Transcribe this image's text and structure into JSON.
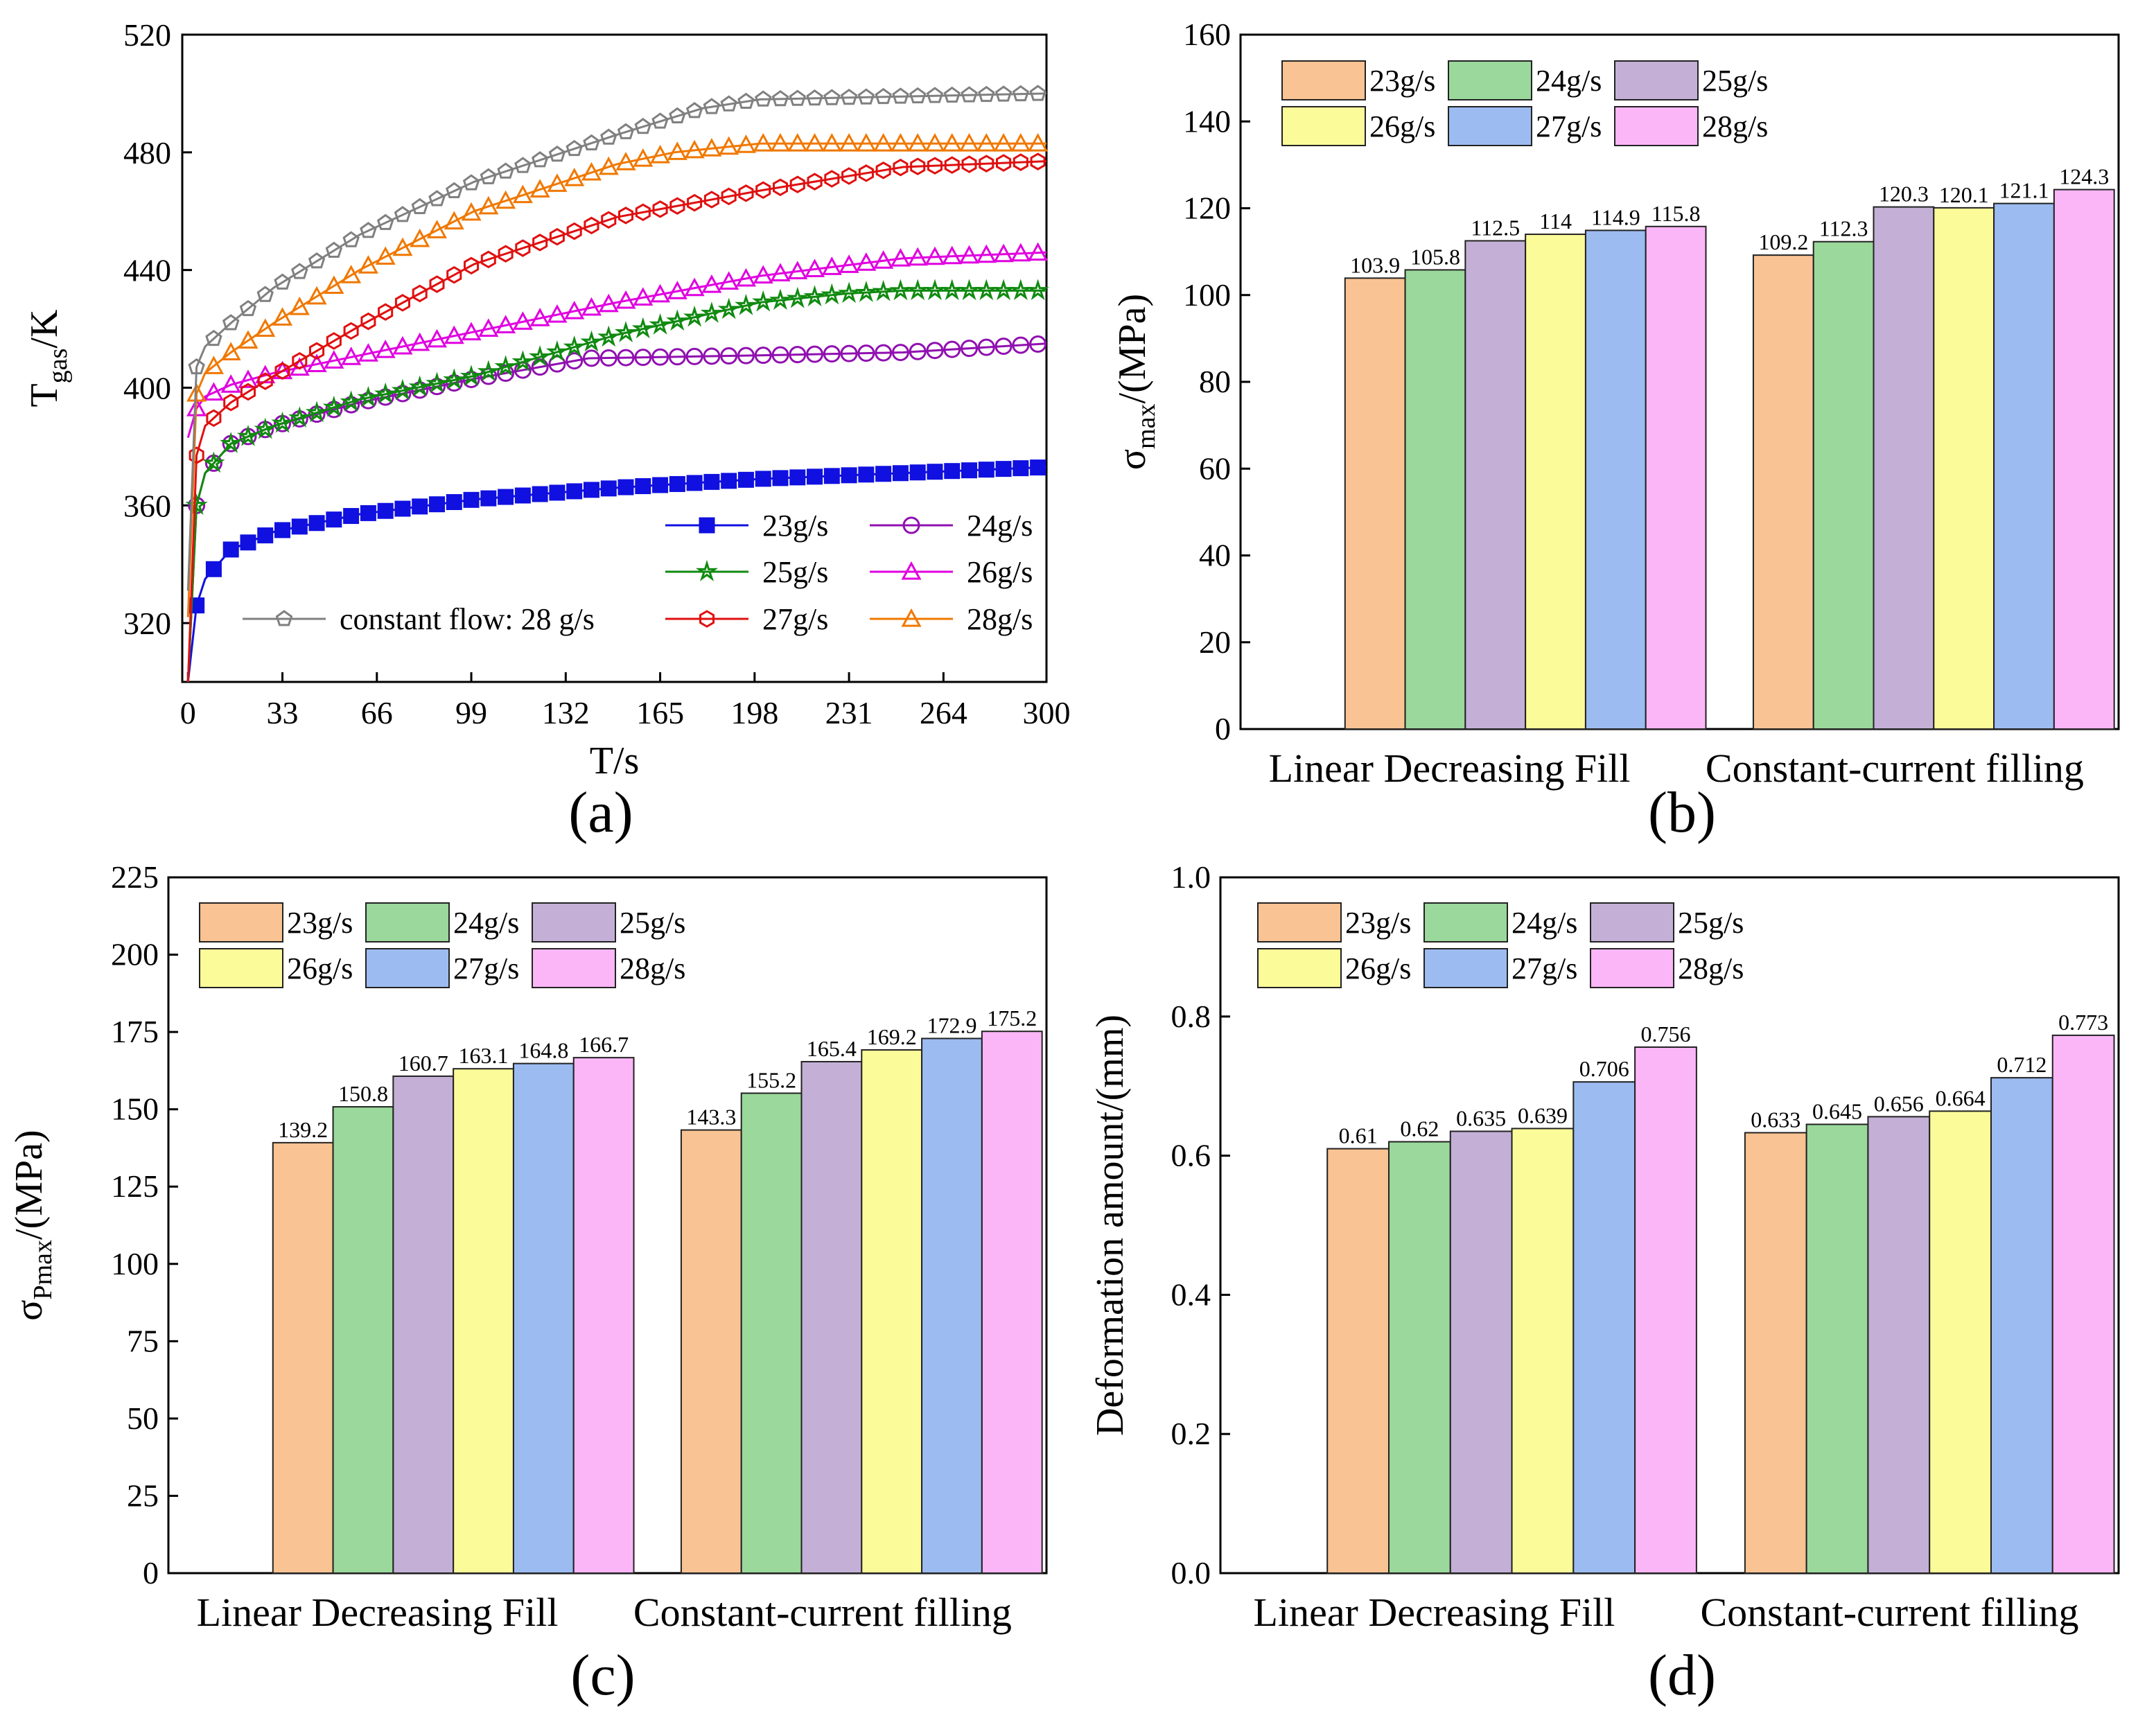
{
  "panels": [
    "(a)",
    "(b)",
    "(c)",
    "(d)"
  ],
  "chart_data": [
    {
      "type": "line",
      "panel": "(a)",
      "xlabel": "T/s",
      "ylabel": "T_gas/K",
      "ylabel_main": "T",
      "ylabel_sub": "gas",
      "ylabel_suffix": "/K",
      "xlim": [
        -2,
        300
      ],
      "ylim": [
        300,
        520
      ],
      "xticks": [
        0,
        33,
        66,
        99,
        132,
        165,
        198,
        231,
        264,
        300
      ],
      "yticks": [
        320,
        360,
        400,
        440,
        480,
        520
      ],
      "series": [
        {
          "name": "23g/s",
          "color": "#1010e0",
          "marker": "square",
          "x": [
            0,
            3,
            6,
            15,
            30,
            60,
            100,
            150,
            200,
            250,
            300
          ],
          "y": [
            300,
            326,
            335,
            345,
            351,
            357,
            362,
            366,
            369,
            371,
            373
          ]
        },
        {
          "name": "24g/s",
          "color": "#9010b0",
          "marker": "circle",
          "x": [
            0,
            3,
            6,
            15,
            30,
            60,
            100,
            140,
            200,
            250,
            300
          ],
          "y": [
            300,
            360,
            371,
            381,
            387,
            395,
            403,
            410,
            411,
            412,
            415
          ]
        },
        {
          "name": "25g/s",
          "color": "#108a10",
          "marker": "star",
          "x": [
            0,
            3,
            6,
            15,
            30,
            60,
            100,
            150,
            200,
            230,
            250,
            300
          ],
          "y": [
            300,
            360,
            371,
            381,
            387,
            396,
            404,
            418,
            429,
            432,
            433,
            433
          ]
        },
        {
          "name": "26g/s",
          "color": "#e000e0",
          "marker": "triangle",
          "x": [
            0,
            3,
            6,
            15,
            30,
            60,
            100,
            150,
            200,
            250,
            300
          ],
          "y": [
            383,
            393,
            397,
            401,
            405,
            411,
            419,
            429,
            438,
            444,
            446
          ]
        },
        {
          "name": "27g/s",
          "color": "#e01010",
          "marker": "hexagon",
          "x": [
            0,
            3,
            6,
            15,
            30,
            60,
            100,
            150,
            200,
            250,
            300
          ],
          "y": [
            300,
            377,
            387,
            395,
            404,
            421,
            442,
            458,
            467,
            475,
            477
          ]
        },
        {
          "name": "28g/s",
          "color": "#f07800",
          "marker": "triangle",
          "x": [
            0,
            3,
            6,
            15,
            30,
            60,
            100,
            150,
            170,
            200,
            250,
            300
          ],
          "y": [
            322,
            398,
            405,
            412,
            422,
            440,
            460,
            476,
            480,
            483,
            483,
            483
          ]
        },
        {
          "name": "constant flow: 28 g/s",
          "color": "#808080",
          "marker": "pentagon",
          "x": [
            0,
            3,
            6,
            15,
            30,
            60,
            100,
            150,
            180,
            200,
            250,
            300
          ],
          "y": [
            331,
            407,
            414,
            422,
            434,
            452,
            470,
            486,
            495,
            498,
            499,
            500
          ]
        }
      ]
    },
    {
      "type": "bar",
      "panel": "(b)",
      "ylabel": "σ_max/(MPa)",
      "ylabel_main": "σ",
      "ylabel_sub": "max",
      "ylabel_suffix": "/(MPa)",
      "ylim": [
        0,
        160
      ],
      "yticks": [
        0,
        20,
        40,
        60,
        80,
        100,
        120,
        140,
        160
      ],
      "categories": [
        "Linear Decreasing Fill",
        "Constant-current filling"
      ],
      "series": [
        {
          "name": "23g/s",
          "values": [
            103.9,
            109.2
          ],
          "labels": [
            "103.9",
            "109.2"
          ]
        },
        {
          "name": "24g/s",
          "values": [
            105.8,
            112.3
          ],
          "labels": [
            "105.8",
            "112.3"
          ]
        },
        {
          "name": "25g/s",
          "values": [
            112.5,
            120.3
          ],
          "labels": [
            "112.5",
            "120.3"
          ]
        },
        {
          "name": "26g/s",
          "values": [
            114,
            120.1
          ],
          "labels": [
            "114",
            "120.1"
          ]
        },
        {
          "name": "27g/s",
          "values": [
            114.9,
            121.1
          ],
          "labels": [
            "114.9",
            "121.1"
          ]
        },
        {
          "name": "28g/s",
          "values": [
            115.8,
            124.3
          ],
          "labels": [
            "115.8",
            "124.3"
          ]
        }
      ]
    },
    {
      "type": "bar",
      "panel": "(c)",
      "ylabel": "σ_Pmax/(MPa)",
      "ylabel_main": "σ",
      "ylabel_sub": "Pmax",
      "ylabel_suffix": "/(MPa)",
      "ylim": [
        0,
        225
      ],
      "yticks": [
        0,
        25,
        50,
        75,
        100,
        125,
        150,
        175,
        200,
        225
      ],
      "categories": [
        "Linear Decreasing Fill",
        "Constant-current filling"
      ],
      "series": [
        {
          "name": "23g/s",
          "values": [
            139.2,
            143.3
          ],
          "labels": [
            "139.2",
            "143.3"
          ]
        },
        {
          "name": "24g/s",
          "values": [
            150.8,
            155.2
          ],
          "labels": [
            "150.8",
            "155.2"
          ]
        },
        {
          "name": "25g/s",
          "values": [
            160.7,
            165.4
          ],
          "labels": [
            "160.7",
            "165.4"
          ]
        },
        {
          "name": "26g/s",
          "values": [
            163.1,
            169.2
          ],
          "labels": [
            "163.1",
            "169.2"
          ]
        },
        {
          "name": "27g/s",
          "values": [
            164.8,
            172.9
          ],
          "labels": [
            "164.8",
            "172.9"
          ]
        },
        {
          "name": "28g/s",
          "values": [
            166.7,
            175.2
          ],
          "labels": [
            "166.7",
            "175.2"
          ]
        }
      ]
    },
    {
      "type": "bar",
      "panel": "(d)",
      "ylabel": "Deformation amount/(mm)",
      "ylim": [
        0,
        1.0
      ],
      "yticks": [
        0.0,
        0.2,
        0.4,
        0.6,
        0.8,
        1.0
      ],
      "ytick_labels": [
        "0.0",
        "0.2",
        "0.4",
        "0.6",
        "0.8",
        "1.0"
      ],
      "categories": [
        "Linear Decreasing Fill",
        "Constant-current filling"
      ],
      "series": [
        {
          "name": "23g/s",
          "values": [
            0.61,
            0.633
          ],
          "labels": [
            "0.61",
            "0.633"
          ]
        },
        {
          "name": "24g/s",
          "values": [
            0.62,
            0.645
          ],
          "labels": [
            "0.62",
            "0.645"
          ]
        },
        {
          "name": "25g/s",
          "values": [
            0.635,
            0.656
          ],
          "labels": [
            "0.635",
            "0.656"
          ]
        },
        {
          "name": "26g/s",
          "values": [
            0.639,
            0.664
          ],
          "labels": [
            "0.639",
            "0.664"
          ]
        },
        {
          "name": "27g/s",
          "values": [
            0.706,
            0.712
          ],
          "labels": [
            "0.706",
            "0.712"
          ]
        },
        {
          "name": "28g/s",
          "values": [
            0.756,
            0.773
          ],
          "labels": [
            "0.756",
            "0.773"
          ]
        }
      ]
    }
  ],
  "bar_colors": [
    "#f9c393",
    "#9ad89b",
    "#c4b0d6",
    "#fbfb99",
    "#9cbcf1",
    "#fbb6f7"
  ],
  "line_legend_order": [
    "23g/s",
    "24g/s",
    "25g/s",
    "26g/s",
    "constant flow: 28 g/s",
    "27g/s",
    "28g/s"
  ]
}
